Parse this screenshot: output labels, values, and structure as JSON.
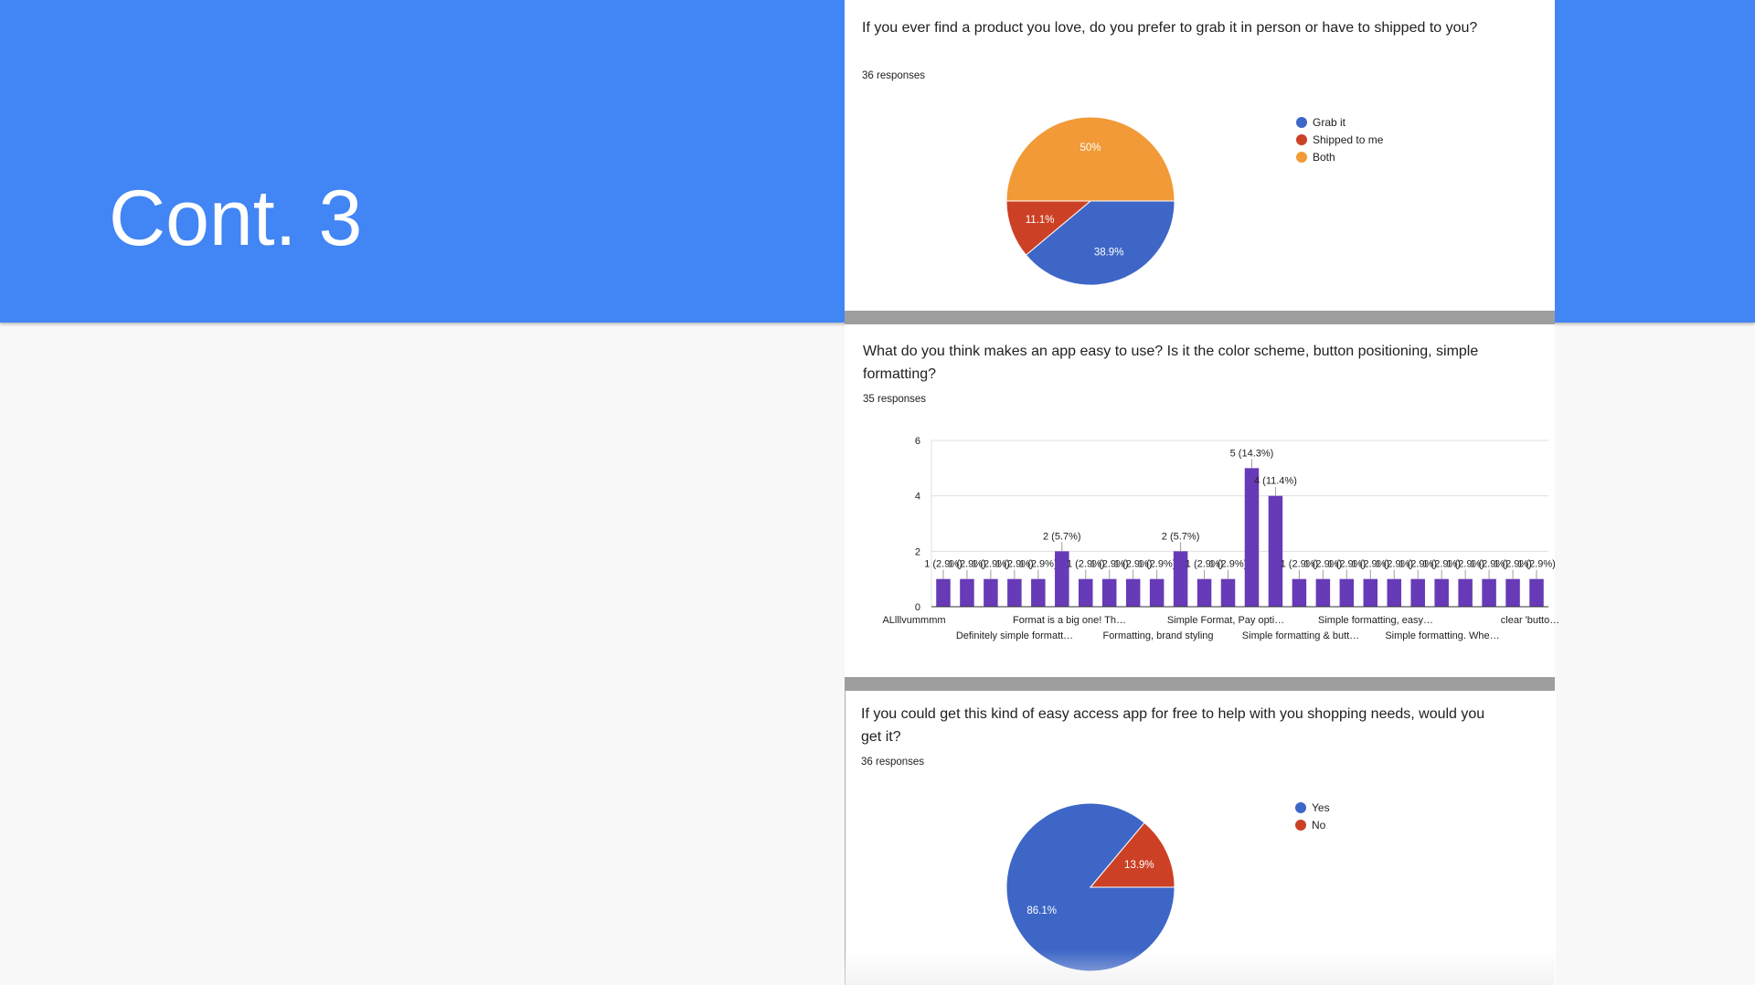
{
  "slide": {
    "title": "Cont. 3"
  },
  "q1": {
    "question": "If you ever find a product you love, do you prefer to grab it in person or have to shipped to you?",
    "responses": "36 responses"
  },
  "q2": {
    "question": "What do you think makes an app easy to use? Is it the color scheme, button positioning, simple formatting?",
    "responses": "35 responses"
  },
  "q3": {
    "question": "If you could get this kind of easy access app for free to help with you shopping needs, would you get it?",
    "responses": "36 responses"
  },
  "chart_data": [
    {
      "type": "pie",
      "slices": [
        {
          "label": "Grab it",
          "value": 38.9,
          "display": "38.9%",
          "color": "#3d66c7"
        },
        {
          "label": "Shipped to me",
          "value": 11.1,
          "display": "11.1%",
          "color": "#cc4125"
        },
        {
          "label": "Both",
          "value": 50,
          "display": "50%",
          "color": "#f19a37"
        }
      ]
    },
    {
      "type": "bar",
      "color": "#673ab7",
      "ylim": [
        0,
        6
      ],
      "yticks": [
        0,
        2,
        4,
        6
      ],
      "grid": true,
      "x_labels_row1": [
        "ALlllvummmm",
        "Format is a big one! Th…",
        "Simple Format, Pay opti…",
        "Simple formatting, easy…",
        "clear 'butto…"
      ],
      "x_labels_row2": [
        "Definitely simple formatt…",
        "Formatting, brand styling",
        "Simple formatting & butt…",
        "Simple formatting. Whe…"
      ],
      "values": [
        1,
        1,
        1,
        1,
        1,
        2,
        1,
        1,
        1,
        1,
        2,
        1,
        1,
        5,
        4,
        1,
        1,
        1,
        1,
        1,
        1,
        1,
        1,
        1,
        1,
        1
      ],
      "labels": [
        "1 (2.9%)",
        "1 (2.9%)",
        "1 (2.9%)",
        "1 (2.9%)",
        "1 (2.9%)",
        "2 (5.7%)",
        "1 (2.9%)",
        "1 (2.9%)",
        "1 (2.9%)",
        "1 (2.9%)",
        "2 (5.7%)",
        "1 (2.9%)",
        "1 (2.9%)",
        "5 (14.3%)",
        "4 (11.4%)",
        "1 (2.9%)",
        "1 (2.9%)",
        "1 (2.9%)",
        "1 (2.9%)",
        "1 (2.9%)",
        "1 (2.9%)",
        "1 (2.9%)",
        "1 (2.9%)",
        "1 (2.9%)",
        "1 (2.9%)",
        "1 (2.9%)"
      ]
    },
    {
      "type": "pie",
      "slices": [
        {
          "label": "Yes",
          "value": 86.1,
          "display": "86.1%",
          "color": "#3d66c7"
        },
        {
          "label": "No",
          "value": 13.9,
          "display": "13.9%",
          "color": "#cc4125"
        }
      ]
    }
  ]
}
